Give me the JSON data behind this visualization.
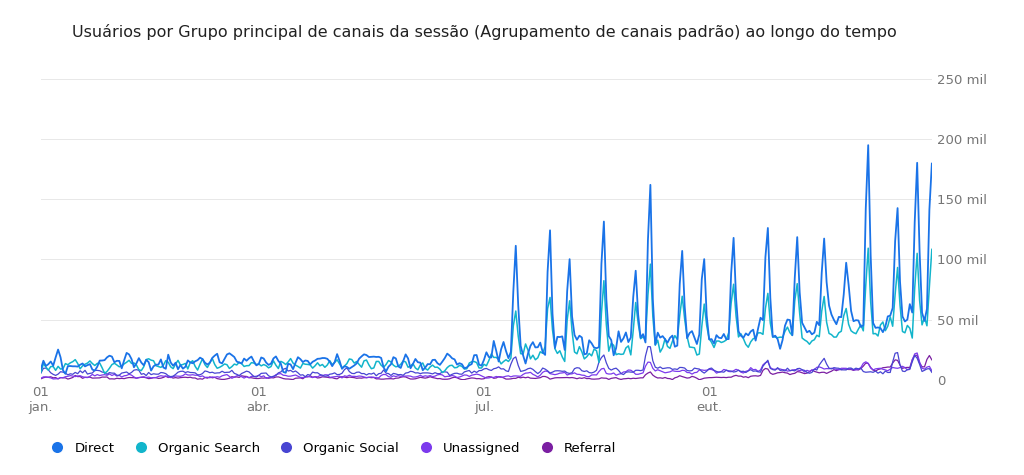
{
  "title": "Usuários por Grupo principal de canais da sessão (Agrupamento de canais padrão) ao longo do tempo",
  "title_fontsize": 11.5,
  "background_color": "#ffffff",
  "plot_bg_color": "#ffffff",
  "grid_color": "#e8e8e8",
  "ylim": [
    0,
    260000
  ],
  "yticks": [
    0,
    50000,
    100000,
    150000,
    200000,
    250000
  ],
  "ytick_labels": [
    "0",
    "50 mil",
    "100 mil",
    "150 mil",
    "200 mil",
    "250 mil"
  ],
  "xtick_positions": [
    0,
    89,
    181,
    273
  ],
  "xtick_labels": [
    "01\njan.",
    "01\nabr.",
    "01\njul.",
    "01\neut."
  ],
  "legend": [
    {
      "label": "Direct",
      "color": "#1a73e8"
    },
    {
      "label": "Organic Search",
      "color": "#12b5cb"
    },
    {
      "label": "Organic Social",
      "color": "#4845d2"
    },
    {
      "label": "Unassigned",
      "color": "#7c3aed"
    },
    {
      "label": "Referral",
      "color": "#7b1fa2"
    }
  ],
  "series_colors": {
    "Direct": "#1a73e8",
    "Organic Search": "#12b5cb",
    "Organic Social": "#4845d2",
    "Unassigned": "#7c3aed",
    "Referral": "#7b1fa2"
  },
  "series_lw": {
    "Direct": 1.3,
    "Organic Search": 1.1,
    "Organic Social": 0.9,
    "Unassigned": 0.9,
    "Referral": 0.9
  }
}
